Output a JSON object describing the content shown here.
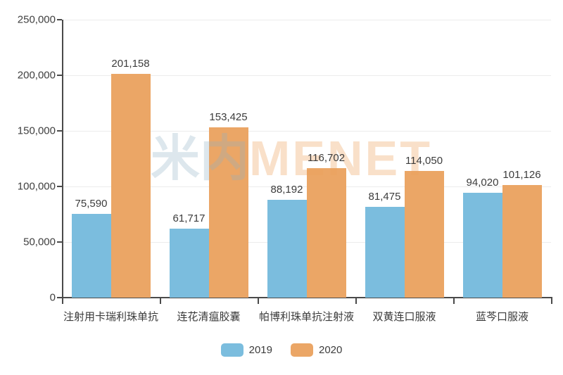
{
  "chart_data": {
    "type": "bar",
    "title": "",
    "xlabel": "",
    "ylabel": "",
    "categories": [
      "注射用卡瑞利珠单抗",
      "连花清瘟胶囊",
      "帕博利珠单抗注射液",
      "双黄连口服液",
      "蓝芩口服液"
    ],
    "series": [
      {
        "name": "2019",
        "color": "#7BBDDE",
        "values": [
          75590,
          61717,
          88192,
          81475,
          94020
        ]
      },
      {
        "name": "2020",
        "color": "#EBA666",
        "values": [
          201158,
          153425,
          116702,
          114050,
          101126
        ]
      }
    ],
    "value_labels": {
      "2019": [
        "75,590",
        "61,717",
        "88,192",
        "81,475",
        "94,020"
      ],
      "2020": [
        "201,158",
        "153,425",
        "116,702",
        "114,050",
        "101,126"
      ]
    },
    "ylim": [
      0,
      250000
    ],
    "ytick_step": 50000,
    "ytick_labels": [
      "0",
      "50,000",
      "100,000",
      "150,000",
      "200,000",
      "250,000"
    ],
    "grid": true,
    "legend_position": "bottom-center"
  },
  "legend": {
    "items": [
      {
        "label": "2019",
        "color": "#7BBDDE"
      },
      {
        "label": "2020",
        "color": "#EBA666"
      }
    ]
  },
  "watermark": {
    "cn": "米内",
    "en": "MENET"
  },
  "colors": {
    "bar_2019": "#7BBDDE",
    "bar_2020": "#EBA666",
    "axis": "#4a4a4a",
    "gridline": "#ececec",
    "text": "#3c3c3c",
    "watermark_cn": "rgba(141,175,196,0.30)",
    "watermark_en": "rgba(237,161,92,0.33)"
  }
}
